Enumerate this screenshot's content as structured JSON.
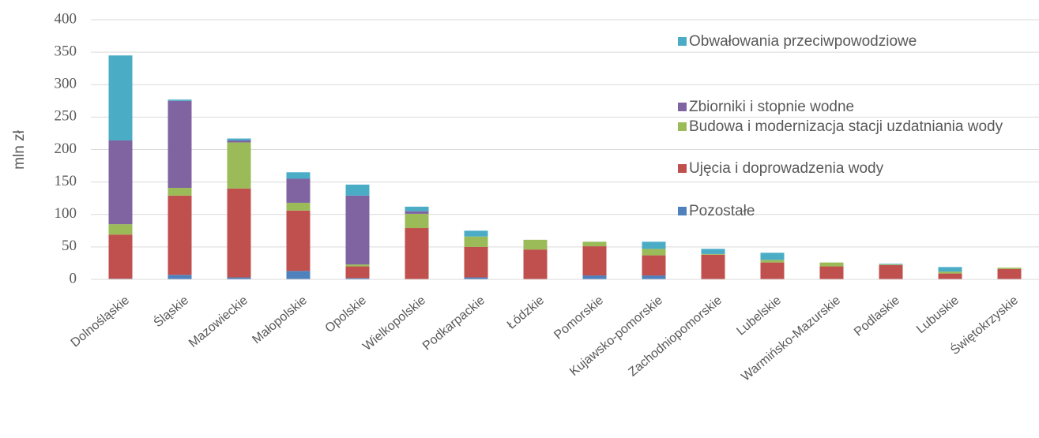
{
  "chart_data": {
    "type": "stacked_bar",
    "y_label": "mln zł",
    "categories": [
      "Dolnośląskie",
      "Śląskie",
      "Mazowieckie",
      "Małopolskie",
      "Opolskie",
      "Wielkopolskie",
      "Podkarpackie",
      "Łódzkie",
      "Pomorskie",
      "Kujawsko-pomorskie",
      "Zachodniopomorskie",
      "Lubelskie",
      "Warmińsko-Mazurskie",
      "Podlaskie",
      "Lubuskie",
      "Świętokrzyskie"
    ],
    "series": [
      {
        "name": "Pozostałe",
        "color": "#4f81bd",
        "values": [
          1,
          7,
          3,
          13,
          2,
          0,
          3,
          0,
          6,
          6,
          0,
          0,
          0,
          0,
          0,
          0
        ]
      },
      {
        "name": "Ujęcia i doprowadzenia wody",
        "color": "#c0504d",
        "values": [
          68,
          122,
          137,
          93,
          18,
          79,
          47,
          46,
          45,
          31,
          38,
          26,
          20,
          22,
          9,
          16
        ]
      },
      {
        "name": "Budowa i modernizacja stacji uzdatniania wody",
        "color": "#9bbb59",
        "values": [
          16,
          12,
          71,
          12,
          3,
          22,
          16,
          15,
          7,
          10,
          1,
          4,
          6,
          1,
          3,
          2
        ]
      },
      {
        "name": "Zbiorniki i stopnie wodne",
        "color": "#8064a2",
        "values": [
          129,
          134,
          3,
          37,
          106,
          4,
          0,
          0,
          0,
          0,
          0,
          0,
          0,
          0,
          0,
          0
        ]
      },
      {
        "name": "Obwałowania przeciwpowodziowe",
        "color": "#4bacc6",
        "values": [
          131,
          2,
          3,
          10,
          17,
          7,
          9,
          0,
          0,
          11,
          8,
          11,
          0,
          1,
          7,
          0
        ]
      }
    ],
    "ylim": [
      0,
      400
    ],
    "yticks": [
      0,
      50,
      100,
      150,
      200,
      250,
      300,
      350,
      400
    ],
    "grid": true,
    "legend": "right"
  }
}
